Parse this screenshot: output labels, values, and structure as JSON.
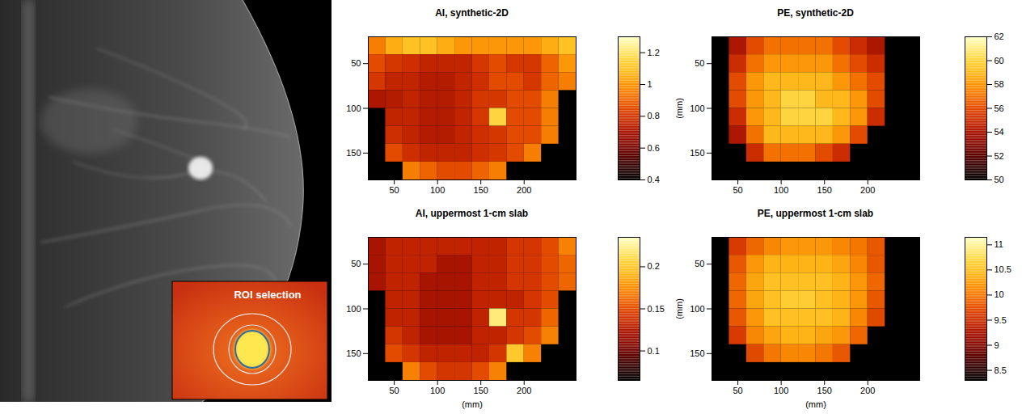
{
  "chart_data": [
    {
      "type": "heatmap",
      "title": "AI, synthetic-2D",
      "x_edges": [
        20,
        40,
        60,
        80,
        100,
        120,
        140,
        160,
        180,
        200,
        220,
        240,
        260
      ],
      "y_edges": [
        20,
        40,
        60,
        80,
        100,
        120,
        140,
        160,
        180
      ],
      "values": [
        [
          0.95,
          1.05,
          1.1,
          1.1,
          1.05,
          1.0,
          1.0,
          1.0,
          1.0,
          1.0,
          1.05,
          1.1
        ],
        [
          0.85,
          0.8,
          0.78,
          0.75,
          0.75,
          0.75,
          0.8,
          0.85,
          0.8,
          0.8,
          0.9,
          1.0
        ],
        [
          0.8,
          0.75,
          0.75,
          0.72,
          0.72,
          0.75,
          0.78,
          0.85,
          0.85,
          0.8,
          0.9,
          0.95
        ],
        [
          0.7,
          0.72,
          0.75,
          0.72,
          0.72,
          0.75,
          0.8,
          0.8,
          0.85,
          0.85,
          0.95,
          null
        ],
        [
          null,
          0.75,
          0.75,
          0.72,
          0.72,
          0.75,
          0.8,
          1.15,
          0.85,
          0.85,
          0.95,
          null
        ],
        [
          null,
          0.78,
          0.75,
          0.72,
          0.72,
          0.75,
          0.78,
          0.8,
          0.85,
          0.85,
          0.95,
          null
        ],
        [
          null,
          0.85,
          0.78,
          0.75,
          0.75,
          0.75,
          0.78,
          0.8,
          0.85,
          0.95,
          null,
          null
        ],
        [
          null,
          null,
          0.95,
          0.9,
          0.85,
          0.85,
          0.9,
          0.95,
          null,
          null,
          null,
          null
        ]
      ],
      "xlim": [
        20,
        260
      ],
      "xticks": [
        50,
        100,
        150,
        200
      ],
      "ylim": [
        20,
        180
      ],
      "yticks": [
        50,
        100,
        150
      ],
      "colorbar_range": [
        0.4,
        1.3
      ],
      "colorbar_ticks": [
        0.4,
        0.6,
        0.8,
        1,
        1.2
      ]
    },
    {
      "type": "heatmap",
      "title": "PE, synthetic-2D",
      "y_label": "(mm)",
      "x_edges": [
        20,
        40,
        60,
        80,
        100,
        120,
        140,
        160,
        180,
        200,
        220,
        240,
        260
      ],
      "y_edges": [
        20,
        40,
        60,
        80,
        100,
        120,
        140,
        160,
        180
      ],
      "values": [
        [
          null,
          54,
          56,
          57,
          57,
          57,
          57,
          56,
          55,
          54,
          null,
          null
        ],
        [
          null,
          55,
          57,
          58,
          58,
          58,
          58,
          57,
          56,
          55,
          null,
          null
        ],
        [
          null,
          56,
          58,
          59,
          59,
          59,
          59,
          58,
          57,
          56,
          null,
          null
        ],
        [
          null,
          56,
          58,
          59,
          60,
          60,
          59,
          59,
          58,
          56,
          null,
          null
        ],
        [
          null,
          55,
          58,
          59,
          60,
          60,
          60,
          59,
          58,
          55,
          null,
          null
        ],
        [
          null,
          54,
          57,
          59,
          59,
          59,
          59,
          58,
          56,
          null,
          null,
          null
        ],
        [
          null,
          null,
          55,
          57,
          57,
          57,
          56,
          55,
          null,
          null,
          null,
          null
        ],
        [
          null,
          null,
          null,
          null,
          null,
          null,
          null,
          null,
          null,
          null,
          null,
          null
        ]
      ],
      "xlim": [
        20,
        260
      ],
      "xticks": [
        50,
        100,
        150,
        200
      ],
      "ylim": [
        20,
        180
      ],
      "yticks": [
        50,
        100,
        150
      ],
      "colorbar_range": [
        50,
        62
      ],
      "colorbar_ticks": [
        50,
        52,
        54,
        56,
        58,
        60,
        62
      ]
    },
    {
      "type": "heatmap",
      "title": "AI, uppermost 1-cm slab",
      "x_label": "(mm)",
      "x_edges": [
        20,
        40,
        60,
        80,
        100,
        120,
        140,
        160,
        180,
        200,
        220,
        240,
        260
      ],
      "y_edges": [
        20,
        40,
        60,
        80,
        100,
        120,
        140,
        160,
        180
      ],
      "values": [
        [
          0.12,
          0.13,
          0.13,
          0.13,
          0.13,
          0.13,
          0.13,
          0.13,
          0.14,
          0.14,
          0.15,
          0.17
        ],
        [
          0.12,
          0.13,
          0.13,
          0.13,
          0.12,
          0.12,
          0.13,
          0.13,
          0.14,
          0.14,
          0.15,
          0.16
        ],
        [
          0.12,
          0.13,
          0.13,
          0.12,
          0.12,
          0.12,
          0.13,
          0.13,
          0.14,
          0.14,
          0.15,
          0.16
        ],
        [
          null,
          0.13,
          0.13,
          0.12,
          0.12,
          0.12,
          0.13,
          0.13,
          0.13,
          0.14,
          0.15,
          null
        ],
        [
          null,
          0.13,
          0.13,
          0.12,
          0.12,
          0.12,
          0.13,
          0.22,
          0.14,
          0.14,
          0.16,
          null
        ],
        [
          null,
          0.14,
          0.13,
          0.12,
          0.12,
          0.12,
          0.13,
          0.13,
          0.14,
          0.15,
          0.17,
          null
        ],
        [
          null,
          0.15,
          0.14,
          0.13,
          0.13,
          0.13,
          0.13,
          0.14,
          0.2,
          0.17,
          null,
          null
        ],
        [
          null,
          null,
          0.17,
          0.15,
          0.14,
          0.14,
          0.15,
          0.17,
          null,
          null,
          null,
          null
        ]
      ],
      "xlim": [
        20,
        260
      ],
      "xticks": [
        50,
        100,
        150,
        200
      ],
      "ylim": [
        20,
        180
      ],
      "yticks": [
        50,
        100,
        150
      ],
      "colorbar_range": [
        0.065,
        0.235
      ],
      "colorbar_ticks": [
        0.1,
        0.15,
        0.2
      ]
    },
    {
      "type": "heatmap",
      "title": "PE, uppermost 1-cm slab",
      "x_label": "(mm)",
      "y_label": "(mm)",
      "x_edges": [
        20,
        40,
        60,
        80,
        100,
        120,
        140,
        160,
        180,
        200,
        220,
        240,
        260
      ],
      "y_edges": [
        20,
        40,
        60,
        80,
        100,
        120,
        140,
        160,
        180
      ],
      "values": [
        [
          null,
          9.6,
          9.9,
          10.1,
          10.2,
          10.2,
          10.2,
          10.1,
          10.0,
          9.8,
          null,
          null
        ],
        [
          null,
          9.8,
          10.2,
          10.4,
          10.4,
          10.4,
          10.4,
          10.3,
          10.1,
          9.8,
          null,
          null
        ],
        [
          null,
          9.9,
          10.3,
          10.5,
          10.5,
          10.5,
          10.5,
          10.4,
          10.2,
          9.9,
          null,
          null
        ],
        [
          null,
          9.9,
          10.3,
          10.5,
          10.6,
          10.6,
          10.5,
          10.4,
          10.2,
          9.8,
          null,
          null
        ],
        [
          null,
          9.8,
          10.2,
          10.5,
          10.5,
          10.5,
          10.5,
          10.4,
          10.1,
          9.7,
          null,
          null
        ],
        [
          null,
          9.6,
          10.1,
          10.3,
          10.4,
          10.4,
          10.3,
          10.2,
          9.9,
          null,
          null,
          null
        ],
        [
          null,
          null,
          9.7,
          10.0,
          10.1,
          10.1,
          10.0,
          9.8,
          null,
          null,
          null,
          null
        ],
        [
          null,
          null,
          null,
          null,
          null,
          null,
          null,
          null,
          null,
          null,
          null,
          null
        ]
      ],
      "xlim": [
        20,
        260
      ],
      "xticks": [
        50,
        100,
        150,
        200
      ],
      "ylim": [
        20,
        180
      ],
      "yticks": [
        50,
        100,
        150
      ],
      "colorbar_range": [
        8.3,
        11.15
      ],
      "colorbar_ticks": [
        8.5,
        9,
        9.5,
        10,
        10.5,
        11
      ]
    }
  ],
  "image_panel": {
    "inset_label": "ROI selection"
  }
}
